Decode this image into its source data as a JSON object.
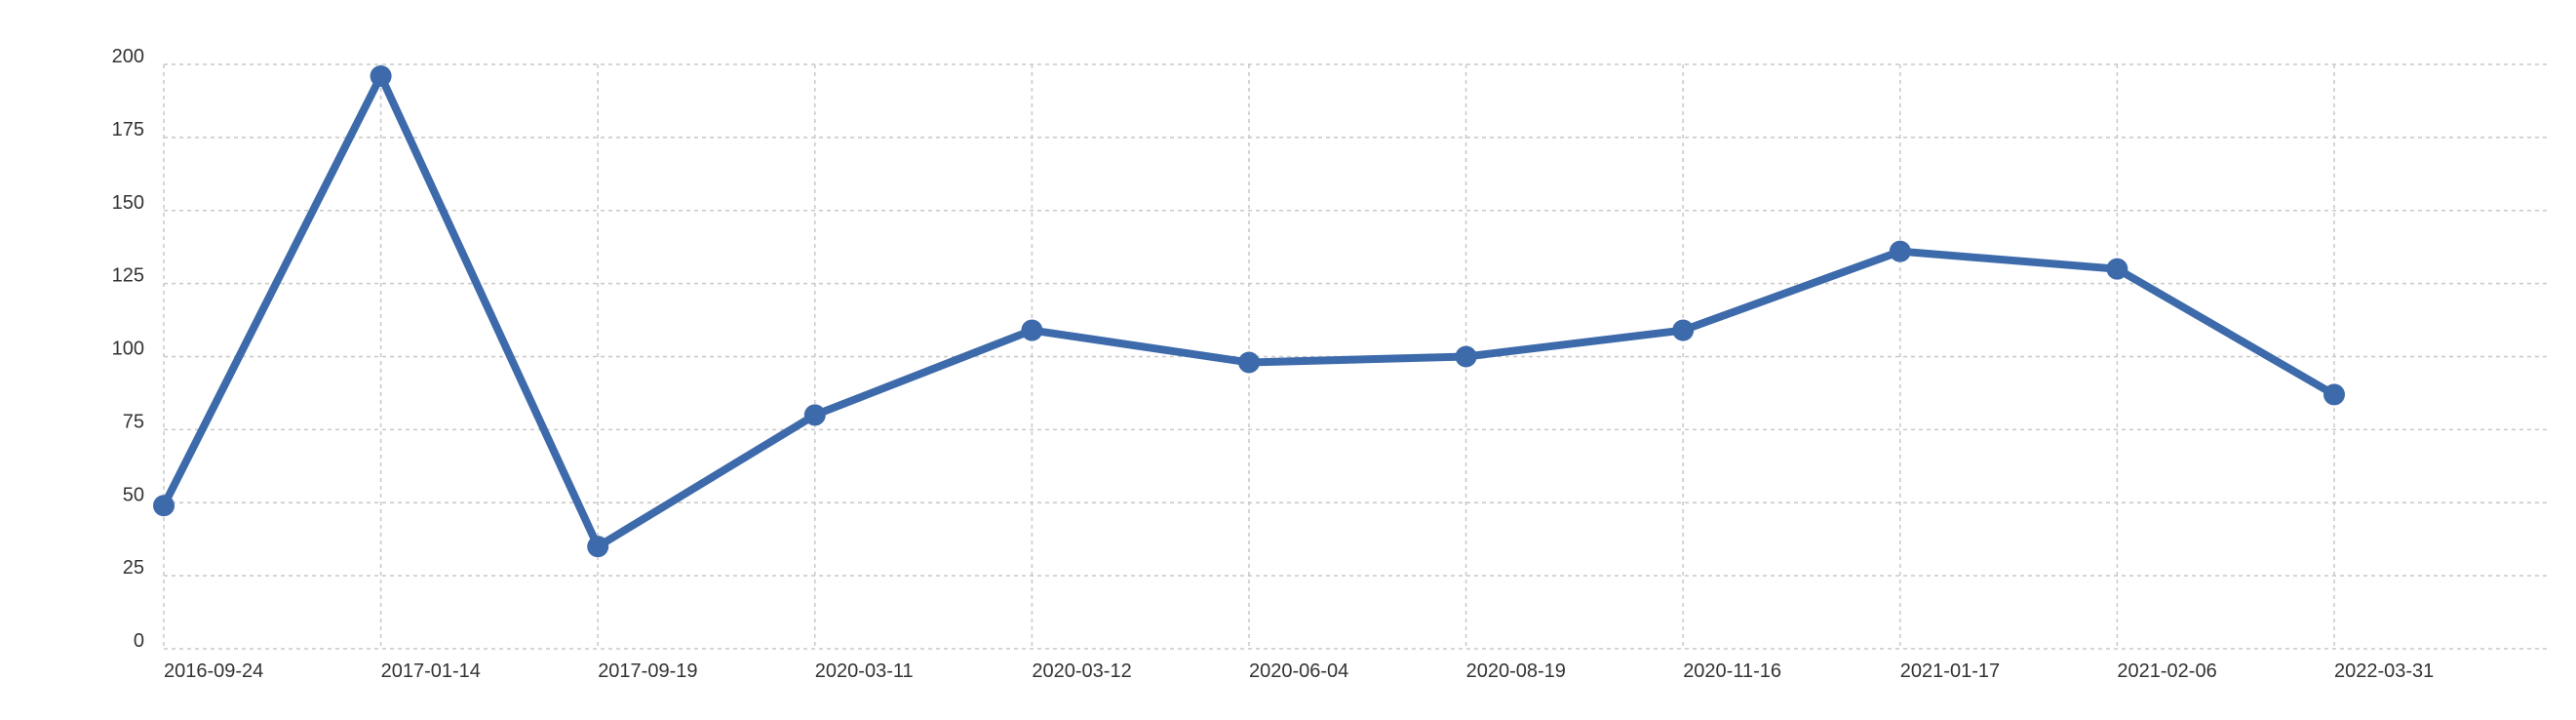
{
  "chart_data": {
    "type": "line",
    "title": "",
    "xlabel": "",
    "ylabel": "",
    "categories": [
      "2016-09-24",
      "2017-01-14",
      "2017-09-19",
      "2020-03-11",
      "2020-03-12",
      "2020-06-04",
      "2020-08-19",
      "2020-11-16",
      "2021-01-17",
      "2021-02-06",
      "2022-03-31"
    ],
    "series": [
      {
        "values": [
          49,
          196,
          35,
          80,
          109,
          98,
          100,
          109,
          136,
          130,
          87
        ],
        "color": "#3d6aaa"
      }
    ],
    "ylim": [
      0,
      200
    ],
    "yticks": [
      0,
      25,
      50,
      75,
      100,
      125,
      150,
      175,
      200
    ],
    "grid": true,
    "legend": "none",
    "markers": true
  }
}
